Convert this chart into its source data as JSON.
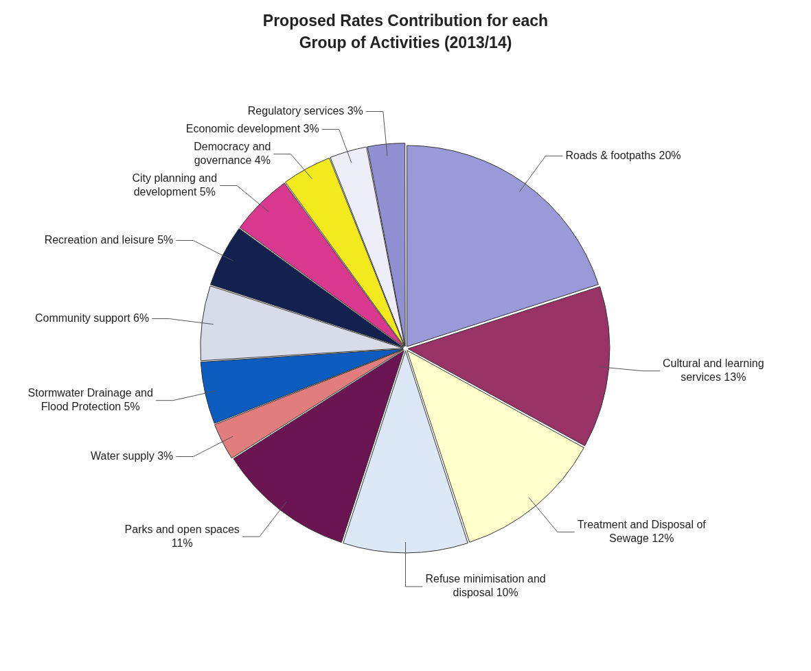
{
  "chart_data": {
    "type": "pie",
    "title": "Proposed Rates Contribution for each Group of Activities (2013/14)",
    "categories": [
      "Roads & footpaths",
      "Cultural and learning services",
      "Treatment and Disposal of Sewage",
      "Refuse minimisation and disposal",
      "Parks and open spaces",
      "Water supply",
      "Stormwater Drainage and Flood Protection",
      "Community support",
      "Recreation and leisure",
      "City planning and development",
      "Democracy and governance",
      "Economic development",
      "Regulatory services"
    ],
    "values": [
      20,
      13,
      12,
      10,
      11,
      3,
      5,
      6,
      5,
      5,
      4,
      3,
      3
    ],
    "value_labels": [
      "20%",
      "13%",
      "12%",
      "10%",
      "11%",
      "3%",
      "5%",
      "6%",
      "5%",
      "5%",
      "4%",
      "3%",
      "3%"
    ],
    "colors": [
      "#9a9ad8",
      "#993366",
      "#ffffcc",
      "#dce8f5",
      "#6a1452",
      "#e27d7d",
      "#0c5cbf",
      "#d8dbe8",
      "#13214f",
      "#d9388f",
      "#f2ea1c",
      "#eeeef8",
      "#8f8fd2"
    ],
    "legend": false
  }
}
